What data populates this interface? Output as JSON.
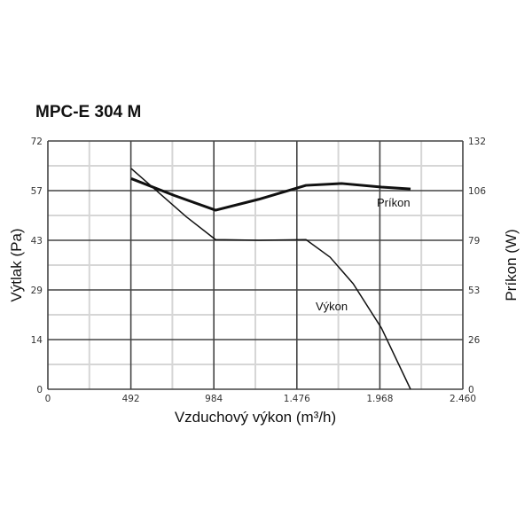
{
  "chart_data": {
    "type": "line",
    "title": "MPC-E 304 M",
    "xlabel": "Vzduchový výkon (m³/h)",
    "ylabel": "Výtlak (Pa)",
    "y2label": "Príkon (W)",
    "xlim": [
      0,
      2460
    ],
    "ylim": [
      0,
      72
    ],
    "y2lim": [
      0,
      132
    ],
    "x_ticks": [
      "0",
      "492",
      "984",
      "1.476",
      "1.968",
      "2.460"
    ],
    "y_ticks": [
      "0",
      "14",
      "29",
      "43",
      "57",
      "72"
    ],
    "y2_ticks": [
      "0",
      "26",
      "53",
      "79",
      "106",
      "132"
    ],
    "grid": true,
    "series": [
      {
        "name": "Výkon",
        "axis": "left",
        "x": [
          494,
          821,
          994,
          1250,
          1530,
          1673,
          1810,
          1978,
          2150
        ],
        "y": [
          64,
          50,
          43.4,
          43.2,
          43.4,
          38.3,
          30.6,
          17.7,
          0
        ]
      },
      {
        "name": "Príkon",
        "axis": "right",
        "x": [
          494,
          750,
          994,
          1250,
          1530,
          1742,
          1978,
          2150
        ],
        "y": [
          112,
          103,
          95.2,
          101,
          108.4,
          109.4,
          107.5,
          106.5
        ]
      }
    ]
  }
}
